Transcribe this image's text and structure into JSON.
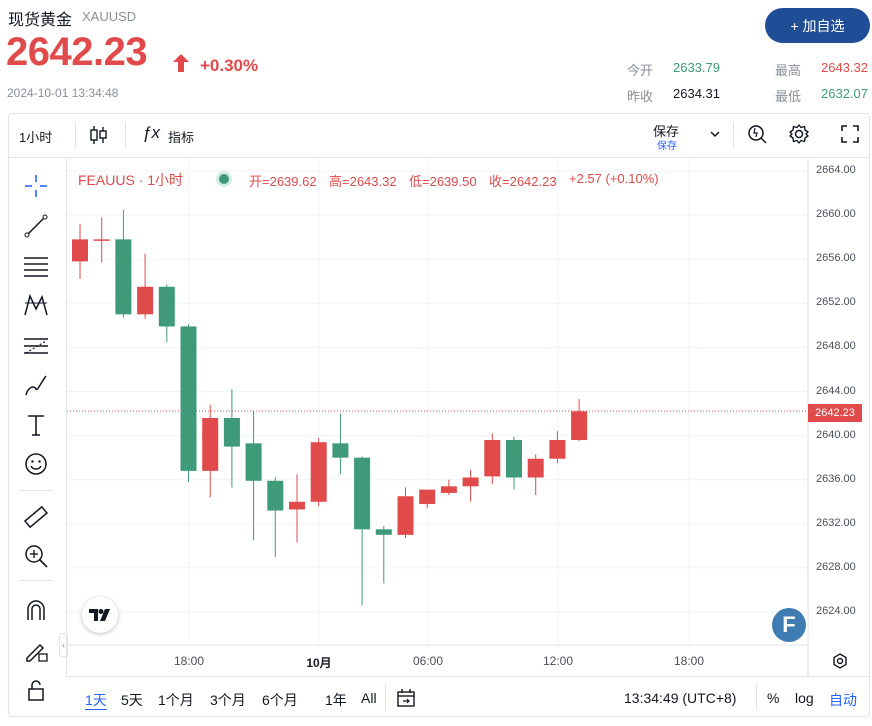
{
  "header": {
    "title": "现货黄金",
    "symbol": "XAUUSD",
    "price": "2642.23",
    "change": "+0.30%",
    "timestamp": "2024-10-01 13:34:48",
    "add_button": "+ 加自选",
    "stats": {
      "open_label": "今开",
      "open_value": "2633.79",
      "high_label": "最高",
      "high_value": "2643.32",
      "prev_label": "昨收",
      "prev_value": "2634.31",
      "low_label": "最低",
      "low_value": "2632.07"
    },
    "colors": {
      "up": "#e04a4a",
      "down": "#3e9a78",
      "accent": "#1f4e96"
    }
  },
  "toolbar": {
    "interval": "1小时",
    "indicators": "指标",
    "save_label": "保存",
    "save_sub": "保存"
  },
  "legend": {
    "name": "FEAUUS · 1小时",
    "open": "开=2639.62",
    "high": "高=2643.32",
    "low": "低=2639.50",
    "close": "收=2642.23",
    "change": "+2.57 (+0.10%)"
  },
  "last_price_tag": "2642.23",
  "bottom_bar": {
    "ranges": [
      "1天",
      "5天",
      "1个月",
      "3个月",
      "6个月",
      "1年",
      "All"
    ],
    "active_range": "1天",
    "clock": "13:34:49 (UTC+8)",
    "percent": "%",
    "log": "log",
    "auto": "自动"
  },
  "chart_data": {
    "type": "candlestick",
    "y_ticks": [
      "2664.00",
      "2660.00",
      "2656.00",
      "2652.00",
      "2648.00",
      "2644.00",
      "2640.00",
      "2636.00",
      "2632.00",
      "2628.00",
      "2624.00"
    ],
    "x_ticks": [
      "18:00",
      "10月",
      "06:00",
      "12:00",
      "18:00"
    ],
    "ylim": [
      2620.5,
      2664.8
    ],
    "candles": [
      {
        "o": 2655.8,
        "h": 2659.2,
        "l": 2654.2,
        "c": 2657.8
      },
      {
        "o": 2657.8,
        "h": 2659.8,
        "l": 2655.7,
        "c": 2657.8
      },
      {
        "o": 2657.8,
        "h": 2660.5,
        "l": 2650.7,
        "c": 2651.0
      },
      {
        "o": 2651.0,
        "h": 2656.5,
        "l": 2650.6,
        "c": 2653.5
      },
      {
        "o": 2653.5,
        "h": 2653.7,
        "l": 2648.5,
        "c": 2649.9
      },
      {
        "o": 2649.9,
        "h": 2650.1,
        "l": 2635.8,
        "c": 2636.8
      },
      {
        "o": 2636.8,
        "h": 2642.8,
        "l": 2634.4,
        "c": 2641.6
      },
      {
        "o": 2641.6,
        "h": 2644.2,
        "l": 2635.3,
        "c": 2639.0
      },
      {
        "o": 2639.3,
        "h": 2642.2,
        "l": 2630.5,
        "c": 2635.9
      },
      {
        "o": 2635.9,
        "h": 2636.2,
        "l": 2629.0,
        "c": 2633.2
      },
      {
        "o": 2633.3,
        "h": 2636.5,
        "l": 2630.3,
        "c": 2634.0
      },
      {
        "o": 2634.0,
        "h": 2639.8,
        "l": 2633.6,
        "c": 2639.4
      },
      {
        "o": 2639.3,
        "h": 2642.0,
        "l": 2636.5,
        "c": 2638.0
      },
      {
        "o": 2638.0,
        "h": 2638.1,
        "l": 2624.6,
        "c": 2631.5
      },
      {
        "o": 2631.5,
        "h": 2631.8,
        "l": 2626.6,
        "c": 2631.0
      },
      {
        "o": 2631.0,
        "h": 2635.3,
        "l": 2630.7,
        "c": 2634.5
      },
      {
        "o": 2633.8,
        "h": 2635.1,
        "l": 2633.4,
        "c": 2635.1
      },
      {
        "o": 2634.8,
        "h": 2636.0,
        "l": 2634.6,
        "c": 2635.4
      },
      {
        "o": 2635.4,
        "h": 2636.9,
        "l": 2634.0,
        "c": 2636.2
      },
      {
        "o": 2636.3,
        "h": 2640.2,
        "l": 2635.6,
        "c": 2639.6
      },
      {
        "o": 2639.6,
        "h": 2639.9,
        "l": 2635.1,
        "c": 2636.2
      },
      {
        "o": 2636.2,
        "h": 2638.3,
        "l": 2634.6,
        "c": 2637.9
      },
      {
        "o": 2637.9,
        "h": 2640.4,
        "l": 2637.5,
        "c": 2639.6
      },
      {
        "o": 2639.6,
        "h": 2643.3,
        "l": 2639.5,
        "c": 2642.2
      }
    ]
  }
}
